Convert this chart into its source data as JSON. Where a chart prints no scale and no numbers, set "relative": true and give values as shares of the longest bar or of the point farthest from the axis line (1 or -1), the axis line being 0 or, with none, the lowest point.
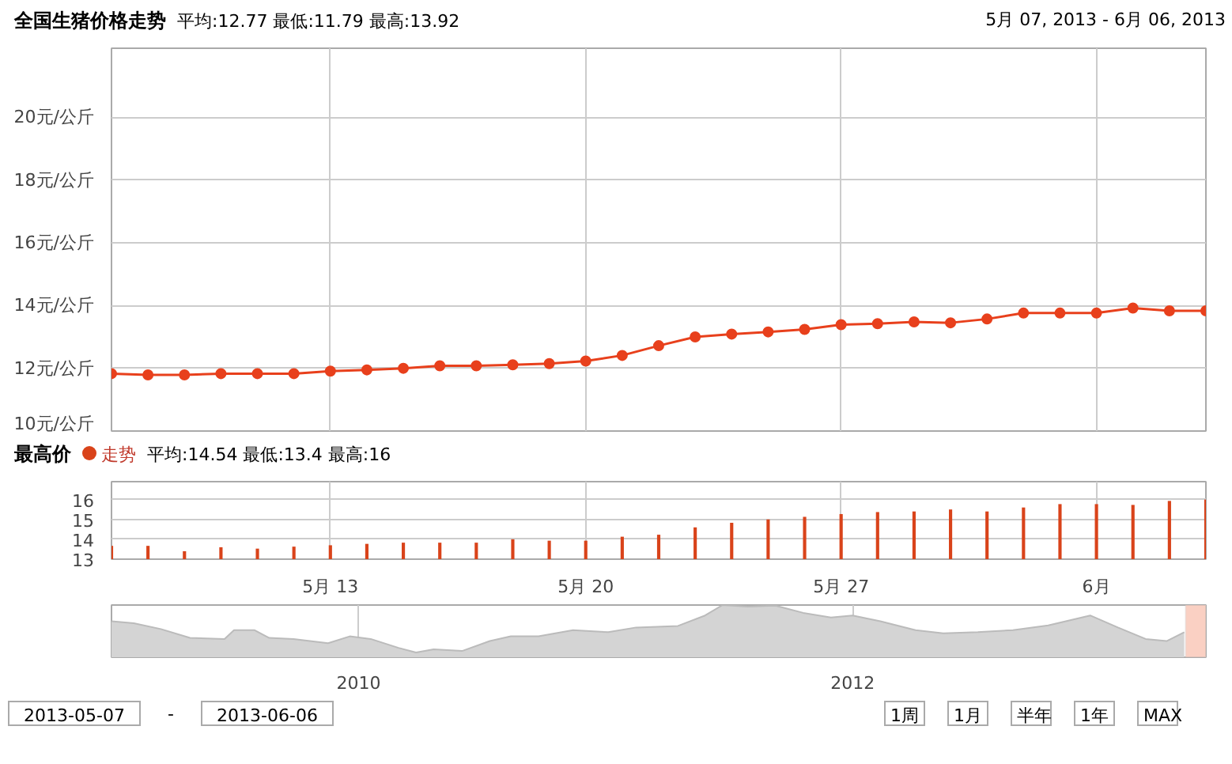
{
  "chart_data": [
    {
      "type": "line",
      "title": "全国生猪价格走势",
      "subtitle": "平均:12.77 最低:11.79 最高:13.92",
      "annotations": [
        "5月 07, 2013 - 6月 06, 2013"
      ],
      "x": [
        "2013-05-07",
        "2013-05-08",
        "2013-05-09",
        "2013-05-10",
        "2013-05-11",
        "2013-05-12",
        "2013-05-13",
        "2013-05-14",
        "2013-05-15",
        "2013-05-16",
        "2013-05-17",
        "2013-05-18",
        "2013-05-19",
        "2013-05-20",
        "2013-05-21",
        "2013-05-22",
        "2013-05-23",
        "2013-05-24",
        "2013-05-25",
        "2013-05-26",
        "2013-05-27",
        "2013-05-28",
        "2013-05-29",
        "2013-05-30",
        "2013-05-31",
        "2013-06-01",
        "2013-06-02",
        "2013-06-03",
        "2013-06-04",
        "2013-06-05",
        "2013-06-06"
      ],
      "values": [
        11.83,
        11.79,
        11.79,
        11.83,
        11.83,
        11.83,
        11.91,
        11.95,
        12.0,
        12.08,
        12.08,
        12.11,
        12.15,
        12.23,
        12.41,
        12.72,
        13.0,
        13.09,
        13.16,
        13.24,
        13.39,
        13.42,
        13.48,
        13.45,
        13.57,
        13.76,
        13.76,
        13.76,
        13.92,
        13.83,
        13.83
      ],
      "color": "#e8401c",
      "marker": "circle",
      "xlim": [
        "2013-05-07",
        "2013-06-06"
      ],
      "xticks": [
        {
          "value": "2013-05-13",
          "label": null
        },
        {
          "value": "2013-05-20",
          "label": null
        },
        {
          "value": "2013-05-27",
          "label": null
        },
        {
          "value": "2013-06-03",
          "label": null
        }
      ],
      "ylim": [
        10,
        22.2
      ],
      "yticks": [
        {
          "value": 10,
          "label": "10元/公斤"
        },
        {
          "value": 12,
          "label": "12元/公斤"
        },
        {
          "value": 14,
          "label": "14元/公斤"
        },
        {
          "value": 16,
          "label": "16元/公斤"
        },
        {
          "value": 18,
          "label": "18元/公斤"
        },
        {
          "value": 20,
          "label": "20元/公斤"
        }
      ],
      "grid": true,
      "tick_labels": "y"
    },
    {
      "type": "bar",
      "title": "最高价",
      "subtitle": "平均:14.54 最低:13.4 最高:16",
      "x": [
        "2013-05-07",
        "2013-05-08",
        "2013-05-09",
        "2013-05-10",
        "2013-05-11",
        "2013-05-12",
        "2013-05-13",
        "2013-05-14",
        "2013-05-15",
        "2013-05-16",
        "2013-05-17",
        "2013-05-18",
        "2013-05-19",
        "2013-05-20",
        "2013-05-21",
        "2013-05-22",
        "2013-05-23",
        "2013-05-24",
        "2013-05-25",
        "2013-05-26",
        "2013-05-27",
        "2013-05-28",
        "2013-05-29",
        "2013-05-30",
        "2013-05-31",
        "2013-06-01",
        "2013-06-02",
        "2013-06-03",
        "2013-06-04",
        "2013-06-05",
        "2013-06-06"
      ],
      "series": [
        {
          "name": "走势",
          "color": "#d9431a",
          "values": [
            13.67,
            13.67,
            13.4,
            13.6,
            13.53,
            13.63,
            13.7,
            13.77,
            13.83,
            13.83,
            13.83,
            14.0,
            13.93,
            13.93,
            14.13,
            14.23,
            14.6,
            14.83,
            15.0,
            15.13,
            15.27,
            15.37,
            15.4,
            15.5,
            15.4,
            15.6,
            15.77,
            15.77,
            15.73,
            15.93,
            16.0
          ]
        }
      ],
      "xlim": [
        "2013-05-07",
        "2013-06-06"
      ],
      "xticks": [
        {
          "value": "2013-05-13",
          "label": "5月 13"
        },
        {
          "value": "2013-05-20",
          "label": "5月 20"
        },
        {
          "value": "2013-05-27",
          "label": "5月 27"
        },
        {
          "value": "2013-06-03",
          "label": "6月"
        }
      ],
      "ylim": [
        13,
        16.9
      ],
      "yticks": [
        13,
        14,
        15,
        16
      ],
      "grid": true,
      "legend": "top left"
    },
    {
      "type": "area",
      "relative": true,
      "color": "#d4d4d4",
      "x": [
        "2009-01-01",
        "2009-02-03",
        "2009-03-15",
        "2009-04-27",
        "2009-06-17",
        "2009-07-01",
        "2009-07-31",
        "2009-08-22",
        "2009-09-27",
        "2009-11-17",
        "2009-12-19",
        "2010-01-19",
        "2010-03-01",
        "2010-03-27",
        "2010-04-22",
        "2010-06-03",
        "2010-07-14",
        "2010-08-14",
        "2010-09-24",
        "2010-11-14",
        "2011-01-05",
        "2011-02-15",
        "2011-04-18",
        "2011-05-28",
        "2011-06-23",
        "2011-07-30",
        "2011-09-09",
        "2011-10-20",
        "2011-11-30",
        "2012-01-01",
        "2012-02-11",
        "2012-04-03",
        "2012-05-14",
        "2012-07-04",
        "2012-08-25",
        "2012-10-16",
        "2012-12-17",
        "2013-01-27",
        "2013-03-09",
        "2013-04-09",
        "2013-05-05"
      ],
      "values": [
        0.69,
        0.65,
        0.54,
        0.37,
        0.35,
        0.52,
        0.52,
        0.37,
        0.35,
        0.27,
        0.4,
        0.35,
        0.18,
        0.09,
        0.15,
        0.12,
        0.31,
        0.4,
        0.4,
        0.52,
        0.48,
        0.57,
        0.6,
        0.8,
        1,
        0.97,
        0.99,
        0.85,
        0.76,
        0.8,
        0.69,
        0.52,
        0.46,
        0.48,
        0.52,
        0.61,
        0.8,
        0.57,
        0.35,
        0.31,
        0.48
      ],
      "xlim": [
        "2009-01-01",
        "2013-06-06"
      ],
      "xticks": [
        {
          "value": "2010-01-01",
          "label": "2010"
        },
        {
          "value": "2012-01-01",
          "label": "2012"
        }
      ],
      "grid": "x",
      "bands": [
        {
          "axis": "x",
          "from": "2013-05-07",
          "to": "2013-06-06",
          "color": "#f9c4b4"
        }
      ],
      "annotations": [
        "2013-05-07",
        "-",
        "2013-06-06",
        "1周",
        "1月",
        "半年",
        "1年",
        "MAX"
      ]
    }
  ]
}
